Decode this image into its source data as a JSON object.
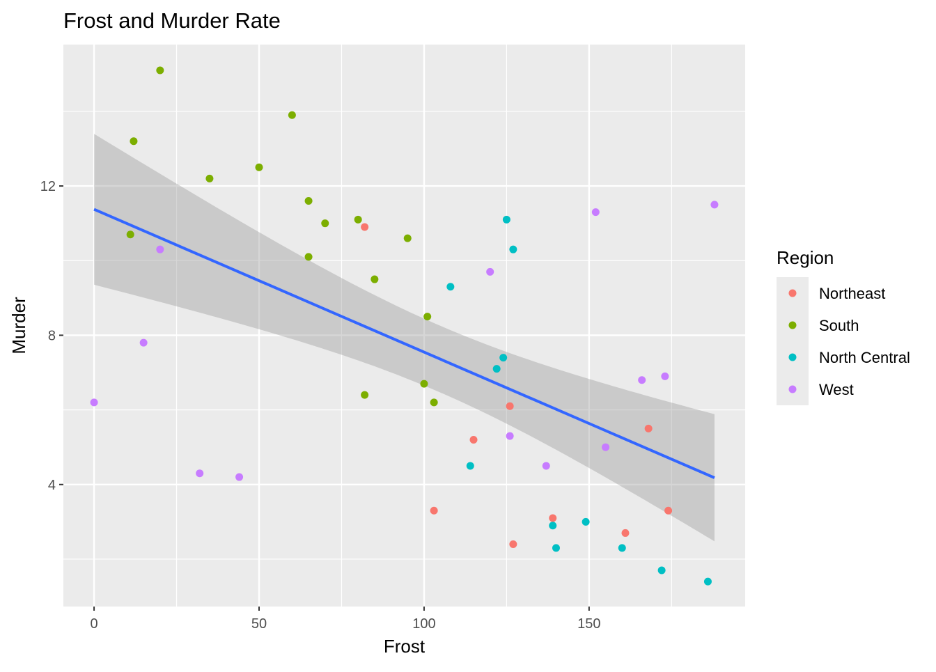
{
  "chart_data": {
    "type": "scatter",
    "title": "Frost and Murder Rate",
    "xlabel": "Frost",
    "ylabel": "Murder",
    "xlim": [
      -9.3,
      197.3
    ],
    "ylim": [
      0.73,
      15.79
    ],
    "x_ticks": [
      0,
      50,
      100,
      150
    ],
    "y_ticks": [
      4,
      8,
      12
    ],
    "x_minor": [
      25,
      75,
      125,
      175
    ],
    "y_minor": [
      2,
      6,
      10,
      14
    ],
    "grid": true,
    "legend": {
      "title": "Region",
      "placement": "right",
      "entries": [
        {
          "name": "Northeast",
          "color": "#F8766D"
        },
        {
          "name": "South",
          "color": "#7CAE00"
        },
        {
          "name": "North Central",
          "color": "#00BFC4"
        },
        {
          "name": "West",
          "color": "#C77CFF"
        }
      ]
    },
    "smooth": {
      "method": "lm",
      "color": "#3366FF",
      "band_color": "#999999",
      "confidence_level": 0.95
    },
    "points": [
      [
        20,
        15.1,
        "South"
      ],
      [
        152,
        11.3,
        "West"
      ],
      [
        15,
        7.8,
        "West"
      ],
      [
        65,
        10.1,
        "South"
      ],
      [
        20,
        10.3,
        "West"
      ],
      [
        166,
        6.8,
        "West"
      ],
      [
        139,
        3.1,
        "Northeast"
      ],
      [
        103,
        6.2,
        "South"
      ],
      [
        11,
        10.7,
        "South"
      ],
      [
        60,
        13.9,
        "South"
      ],
      [
        0,
        6.2,
        "West"
      ],
      [
        126,
        5.3,
        "West"
      ],
      [
        127,
        10.3,
        "North Central"
      ],
      [
        122,
        7.1,
        "North Central"
      ],
      [
        140,
        2.3,
        "North Central"
      ],
      [
        114,
        4.5,
        "North Central"
      ],
      [
        95,
        10.6,
        "South"
      ],
      [
        12,
        13.2,
        "South"
      ],
      [
        161,
        2.7,
        "Northeast"
      ],
      [
        101,
        8.5,
        "South"
      ],
      [
        103,
        3.3,
        "Northeast"
      ],
      [
        125,
        11.1,
        "North Central"
      ],
      [
        160,
        2.3,
        "North Central"
      ],
      [
        50,
        12.5,
        "South"
      ],
      [
        108,
        9.3,
        "North Central"
      ],
      [
        155,
        5.0,
        "West"
      ],
      [
        139,
        2.9,
        "North Central"
      ],
      [
        188,
        11.5,
        "West"
      ],
      [
        174,
        3.3,
        "Northeast"
      ],
      [
        115,
        5.2,
        "Northeast"
      ],
      [
        120,
        9.7,
        "West"
      ],
      [
        82,
        10.9,
        "Northeast"
      ],
      [
        80,
        11.1,
        "South"
      ],
      [
        186,
        1.4,
        "North Central"
      ],
      [
        124,
        7.4,
        "North Central"
      ],
      [
        82,
        6.4,
        "South"
      ],
      [
        44,
        4.2,
        "West"
      ],
      [
        126,
        6.1,
        "Northeast"
      ],
      [
        127,
        2.4,
        "Northeast"
      ],
      [
        65,
        11.6,
        "South"
      ],
      [
        172,
        1.7,
        "North Central"
      ],
      [
        70,
        11.0,
        "South"
      ],
      [
        35,
        12.2,
        "South"
      ],
      [
        137,
        4.5,
        "West"
      ],
      [
        168,
        5.5,
        "Northeast"
      ],
      [
        85,
        9.5,
        "South"
      ],
      [
        32,
        4.3,
        "West"
      ],
      [
        100,
        6.7,
        "South"
      ],
      [
        149,
        3.0,
        "North Central"
      ],
      [
        173,
        6.9,
        "West"
      ]
    ]
  }
}
